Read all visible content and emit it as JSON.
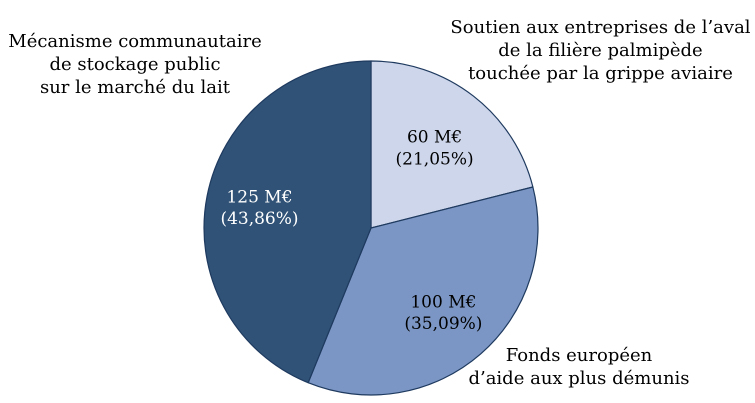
{
  "labels": {
    "milk": {
      "lines": [
        "Mécanisme communautaire",
        "de stockage public",
        "sur le marché du lait"
      ]
    },
    "poultry": {
      "lines": [
        "Soutien aux entreprises de l’aval",
        "de la filière palmipède",
        "touchée par la grippe aviaire"
      ]
    },
    "fead": {
      "lines": [
        "Fonds européen",
        "d’aide aux plus démunis"
      ]
    }
  },
  "chart_data": {
    "type": "pie",
    "title": "",
    "unit": "M€",
    "start_angle_deg": 0,
    "direction": "clockwise",
    "stroke_color": "#1f3a5f",
    "slices": [
      {
        "name": "Soutien aux entreprises de l’aval de la filière palmipède touchée par la grippe aviaire",
        "value": 60,
        "pct": 21.05,
        "color": "#cdd6eb",
        "label_value": "60 M€",
        "label_pct": "(21,05%)",
        "label_color": "#000000",
        "label_radius": 0.62
      },
      {
        "name": "Fonds européen d’aide aux plus démunis",
        "value": 100,
        "pct": 35.09,
        "color": "#7b96c4",
        "label_value": "100 M€",
        "label_pct": "(35,09%)",
        "label_color": "#000000",
        "label_radius": 0.66
      },
      {
        "name": "Mécanisme communautaire de stockage public sur le marché du lait",
        "value": 125,
        "pct": 43.86,
        "color": "#2f5276",
        "label_value": "125 M€",
        "label_pct": "(43,86%)",
        "label_color": "#ffffff",
        "label_radius": 0.68
      }
    ]
  }
}
